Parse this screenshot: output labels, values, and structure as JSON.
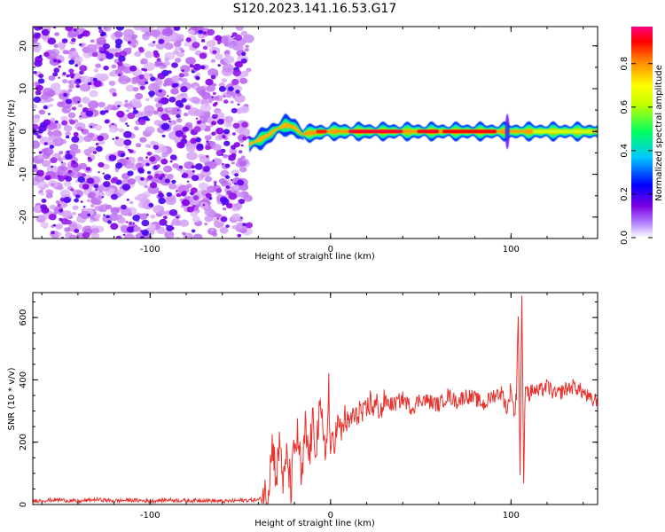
{
  "title": "S120.2023.141.16.53.G17",
  "chart_data": [
    {
      "type": "heatmap",
      "xlabel": "Height of straight line (km)",
      "ylabel": "Frequency (Hz)",
      "xlim": [
        -165,
        148
      ],
      "ylim": [
        -25,
        24.5
      ],
      "xticks": [
        -100,
        0,
        100
      ],
      "yticks": [
        -20,
        -10,
        0,
        10,
        20
      ],
      "colorbar": {
        "label": "Normalized spectral amplitude",
        "range": [
          0,
          0.97
        ],
        "ticks": [
          0.0,
          0.2,
          0.4,
          0.6,
          0.8
        ],
        "tick_labels": [
          "0.0",
          "0.2",
          "0.4",
          "0.6",
          "0.8"
        ],
        "colormap": [
          "#ffffff",
          "#8a00e6",
          "#0000ff",
          "#00e5ff",
          "#00ff40",
          "#ffff00",
          "#ff8000",
          "#ff0000",
          "#ff0080"
        ]
      },
      "regions": [
        {
          "x_range": [
            -165,
            -45
          ],
          "frequency_range": [
            -25,
            24.5
          ],
          "description_value": "noise",
          "amplitude_range": [
            0.0,
            0.15
          ]
        },
        {
          "x_range": [
            -45,
            -15
          ],
          "ridge": [
            [
              -45,
              -3
            ],
            [
              -40,
              -2
            ],
            [
              -35,
              -1
            ],
            [
              -30,
              0.5
            ],
            [
              -25,
              1.5
            ],
            [
              -20,
              1
            ],
            [
              -15,
              -1
            ]
          ],
          "amplitude": 0.35
        },
        {
          "x_range": [
            -15,
            148
          ],
          "ridge": [
            [
              -15,
              -0.5
            ],
            [
              0,
              0
            ],
            [
              50,
              0
            ],
            [
              100,
              0
            ],
            [
              148,
              0
            ]
          ],
          "amplitude": 0.9
        }
      ]
    },
    {
      "type": "line",
      "xlabel": "Height of straight line (km)",
      "ylabel": "SNR (10 * v/v)",
      "xlim": [
        -165,
        148
      ],
      "ylim": [
        0,
        680
      ],
      "xticks": [
        -100,
        0,
        100
      ],
      "yticks": [
        0,
        200,
        400,
        600
      ],
      "color": "#e8322d",
      "series": [
        {
          "x": [
            -165,
            -150,
            -140,
            -130,
            -120,
            -110,
            -100,
            -90,
            -80,
            -70,
            -60,
            -50,
            -40,
            -35,
            -32,
            -30,
            -28,
            -26,
            -24,
            -22,
            -20,
            -18,
            -16,
            -14,
            -12,
            -10,
            -8,
            -6,
            -4,
            -2,
            -1,
            0,
            1,
            2,
            4,
            6,
            8,
            10,
            12,
            14,
            16,
            18,
            20,
            22,
            24,
            26,
            28,
            30,
            35,
            40,
            45,
            50,
            55,
            60,
            65,
            70,
            75,
            80,
            85,
            90,
            95,
            98,
            100,
            102,
            103,
            104,
            105,
            106,
            107,
            108,
            110,
            112,
            115,
            120,
            125,
            130,
            135,
            140,
            145,
            148
          ],
          "y": [
            12,
            15,
            10,
            16,
            12,
            14,
            11,
            15,
            12,
            14,
            10,
            13,
            15,
            30,
            200,
            80,
            210,
            60,
            160,
            40,
            180,
            220,
            60,
            240,
            150,
            250,
            200,
            280,
            240,
            170,
            400,
            120,
            230,
            200,
            260,
            230,
            280,
            250,
            290,
            270,
            310,
            280,
            300,
            330,
            310,
            320,
            300,
            330,
            320,
            340,
            310,
            340,
            330,
            320,
            350,
            330,
            350,
            340,
            320,
            350,
            360,
            300,
            380,
            280,
            360,
            620,
            100,
            680,
            70,
            400,
            350,
            370,
            360,
            380,
            350,
            370,
            380,
            360,
            330,
            340
          ]
        }
      ]
    }
  ]
}
